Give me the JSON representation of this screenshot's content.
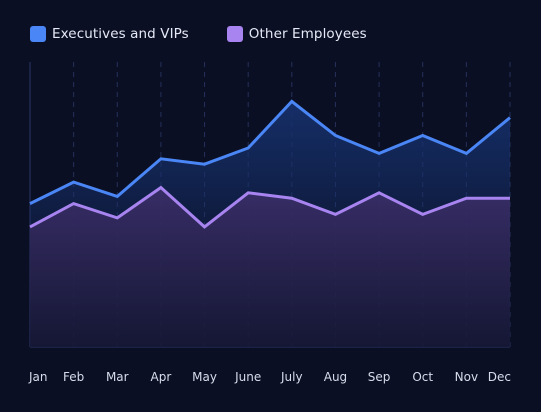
{
  "chart_data": {
    "type": "area",
    "categories": [
      "Jan",
      "Feb",
      "Mar",
      "Apr",
      "May",
      "June",
      "July",
      "Aug",
      "Sep",
      "Oct",
      "Nov",
      "Dec"
    ],
    "series": [
      {
        "name": "Executives and VIPs",
        "color": "#4a86f5",
        "fill": "#13285a",
        "values": [
          51,
          63,
          55,
          76,
          73,
          82,
          108,
          89,
          79,
          89,
          79,
          99
        ]
      },
      {
        "name": "Other Employees",
        "color": "#a884f0",
        "fill": "#2a2350",
        "values": [
          38,
          51,
          43,
          60,
          38,
          57,
          54,
          45,
          57,
          45,
          54,
          54
        ]
      }
    ],
    "ylim": [
      -29,
      130
    ],
    "grid": true,
    "legend_position": "top-left"
  }
}
